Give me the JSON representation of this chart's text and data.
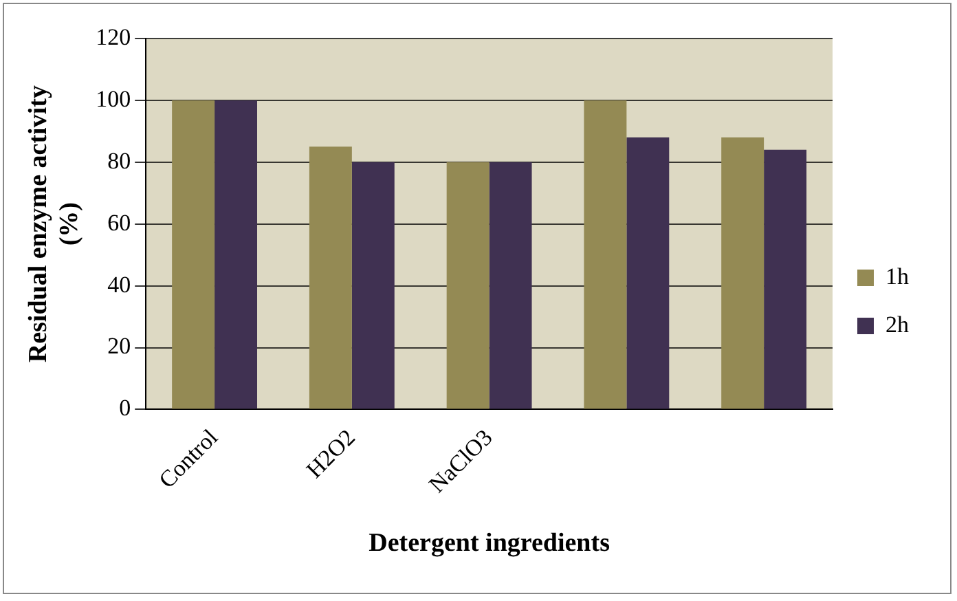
{
  "chart_data": {
    "type": "bar",
    "xlabel": "Detergent ingredients",
    "ylabel": "Residual enzyme activity (%)",
    "categories": [
      "Control",
      "H2O2",
      "NaClO3",
      null,
      null
    ],
    "series": [
      {
        "name": "1h",
        "color": "#948a54",
        "values": [
          100,
          85,
          80,
          100,
          88
        ]
      },
      {
        "name": "2h",
        "color": "#403152",
        "values": [
          100,
          80,
          80,
          88,
          84
        ]
      }
    ],
    "ylim": [
      0,
      120
    ],
    "yticks": [
      0,
      20,
      40,
      60,
      80,
      100,
      120
    ],
    "grid": "y",
    "legend": "right"
  }
}
